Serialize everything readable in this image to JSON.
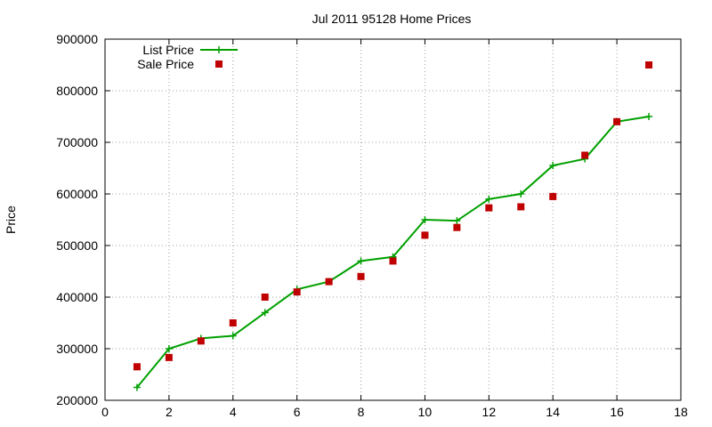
{
  "chart_data": {
    "type": "line",
    "title": "Jul 2011 95128 Home Prices",
    "xlabel": "",
    "ylabel": "Price",
    "xlim": [
      0,
      18
    ],
    "ylim": [
      200000,
      900000
    ],
    "x_ticks": [
      "0",
      "2",
      "4",
      "6",
      "8",
      "10",
      "12",
      "14",
      "16",
      "18"
    ],
    "y_ticks": [
      "200000",
      "300000",
      "400000",
      "500000",
      "600000",
      "700000",
      "800000",
      "900000"
    ],
    "grid": true,
    "legend_position": "top-left",
    "series": [
      {
        "name": "List Price",
        "style": "line+cross",
        "color": "#00a000",
        "x": [
          1,
          2,
          3,
          4,
          5,
          6,
          7,
          8,
          9,
          10,
          11,
          12,
          13,
          14,
          15,
          16,
          17
        ],
        "y": [
          225000,
          300000,
          320000,
          325000,
          370000,
          415000,
          430000,
          470000,
          478000,
          550000,
          548000,
          590000,
          600000,
          655000,
          668000,
          740000,
          750000
        ]
      },
      {
        "name": "Sale Price",
        "style": "square",
        "color": "#c00000",
        "x": [
          1,
          2,
          3,
          4,
          5,
          6,
          7,
          8,
          9,
          10,
          11,
          12,
          13,
          14,
          15,
          16,
          17
        ],
        "y": [
          265000,
          283000,
          315000,
          350000,
          400000,
          410000,
          430000,
          440000,
          470000,
          520000,
          535000,
          573000,
          575000,
          595000,
          675000,
          740000,
          850000
        ]
      }
    ]
  }
}
